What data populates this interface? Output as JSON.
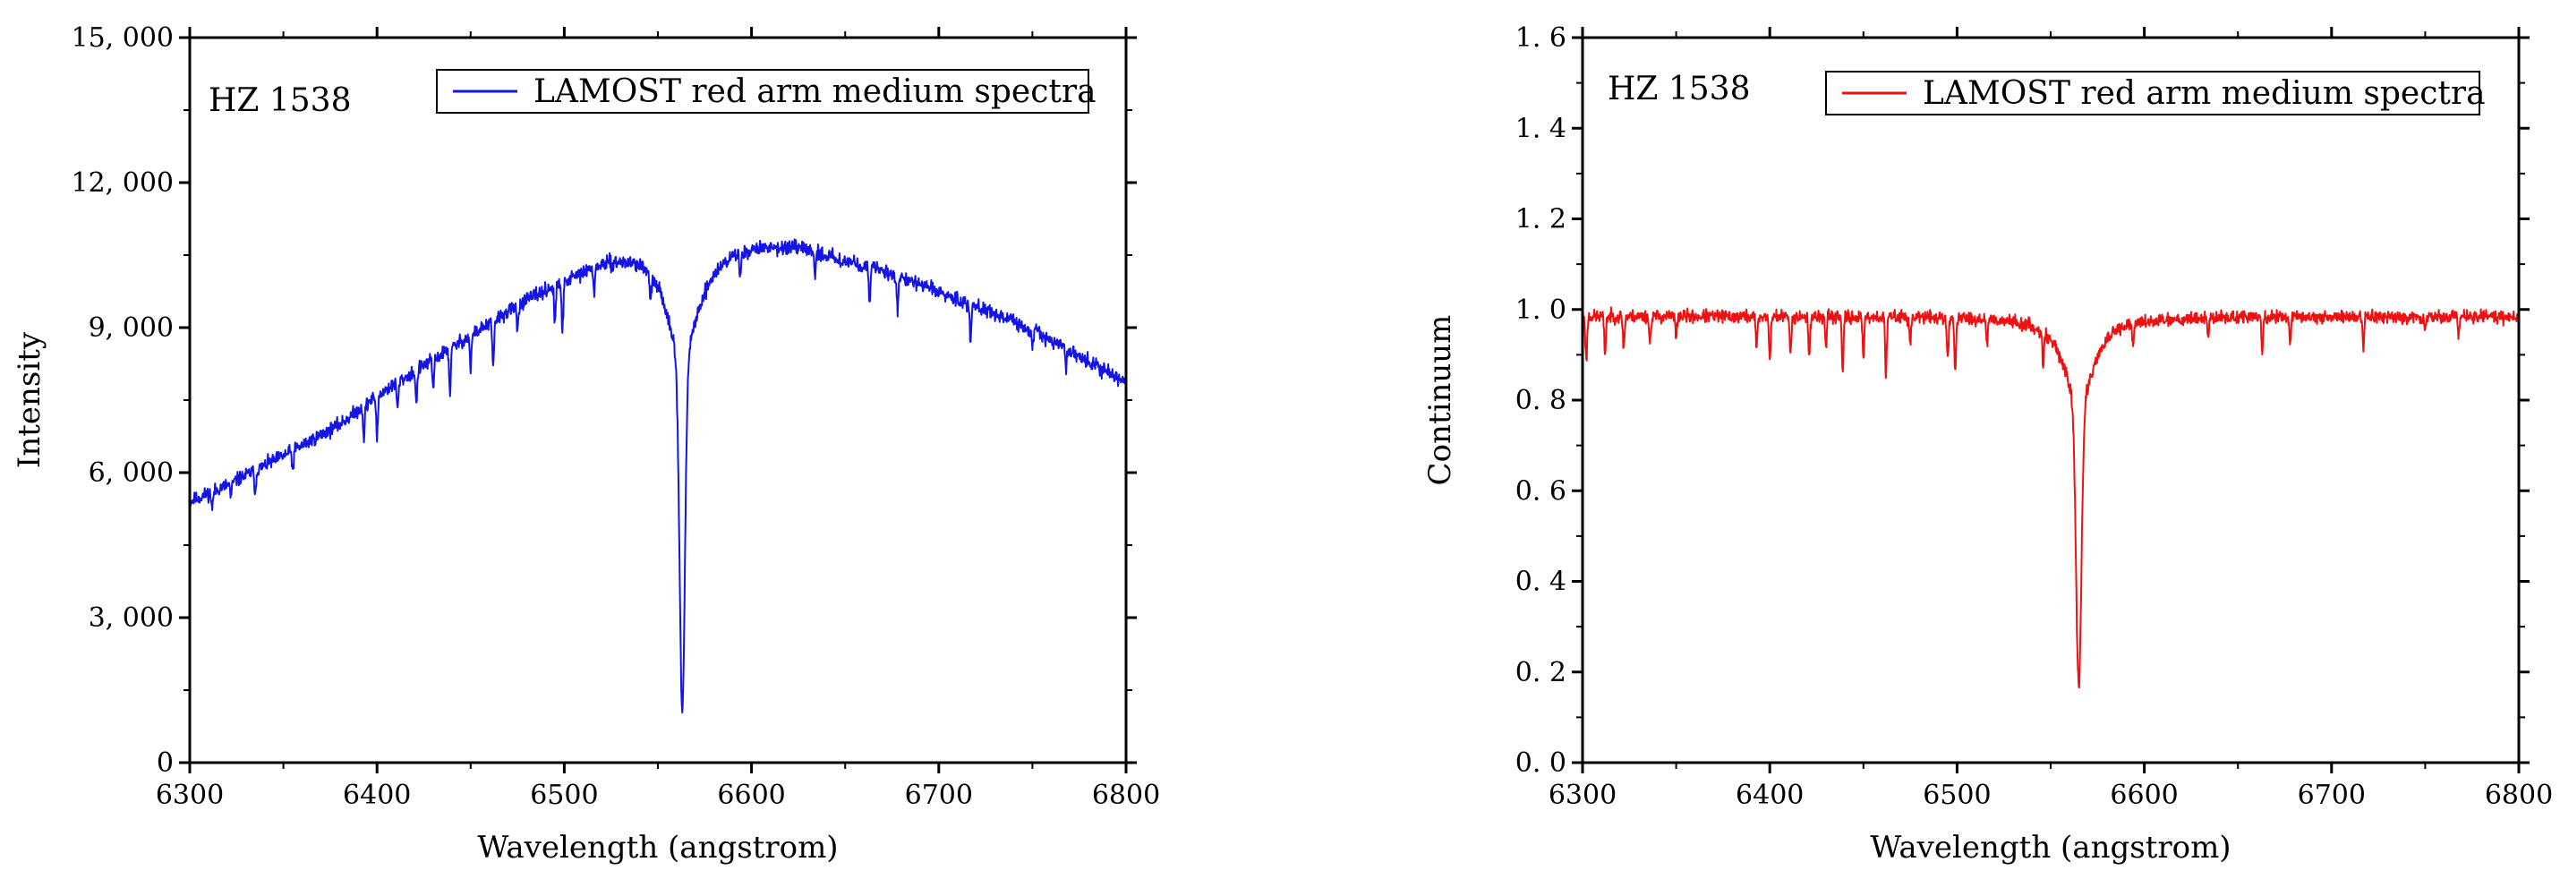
{
  "chart_data": [
    {
      "type": "line",
      "title": "",
      "annotation": "HZ 1538",
      "xlabel": "Wavelength (angstrom)",
      "ylabel": "Intensity",
      "xlim": [
        6300,
        6800
      ],
      "ylim": [
        0,
        15000
      ],
      "x_ticks": [
        6300,
        6400,
        6500,
        6600,
        6700,
        6800
      ],
      "x_tick_labels": [
        "6300",
        "6400",
        "6500",
        "6600",
        "6700",
        "6800"
      ],
      "y_ticks": [
        0,
        3000,
        6000,
        9000,
        12000,
        15000
      ],
      "y_tick_labels": [
        "0",
        "3, 000",
        "6, 000",
        "9, 000",
        "12, 000",
        "15, 000"
      ],
      "legend": {
        "position": "top-right",
        "entries": [
          "LAMOST red arm medium spectra"
        ]
      },
      "series": [
        {
          "name": "LAMOST red arm medium spectra",
          "color": "#1414e6",
          "continuum": {
            "x": [
              6300,
              6320,
              6350,
              6380,
              6400,
              6430,
              6460,
              6480,
              6500,
              6520,
              6540,
              6555,
              6575,
              6590,
              6610,
              6630,
              6650,
              6670,
              6700,
              6730,
              6760,
              6780,
              6800
            ],
            "y": [
              5400,
              5750,
              6350,
              7000,
              7600,
              8350,
              9100,
              9600,
              10000,
              10400,
              10600,
              10500,
              10500,
              10700,
              10750,
              10650,
              10400,
              10200,
              9750,
              9300,
              8750,
              8300,
              7850
            ]
          },
          "halpha": {
            "center": 6563,
            "depth": 7200,
            "core_width": 1.4,
            "wing_depth": 2200,
            "wing_width": 9
          },
          "absorption_lines": [
            {
              "x": 6312,
              "depth": 350
            },
            {
              "x": 6322,
              "depth": 300
            },
            {
              "x": 6335,
              "depth": 450
            },
            {
              "x": 6355,
              "depth": 400
            },
            {
              "x": 6393,
              "depth": 650
            },
            {
              "x": 6400,
              "depth": 900
            },
            {
              "x": 6411,
              "depth": 550
            },
            {
              "x": 6421,
              "depth": 700
            },
            {
              "x": 6430,
              "depth": 600
            },
            {
              "x": 6439,
              "depth": 900
            },
            {
              "x": 6450,
              "depth": 700
            },
            {
              "x": 6462,
              "depth": 1000
            },
            {
              "x": 6475,
              "depth": 500
            },
            {
              "x": 6495,
              "depth": 800
            },
            {
              "x": 6499,
              "depth": 1100
            },
            {
              "x": 6516,
              "depth": 500
            },
            {
              "x": 6546,
              "depth": 600
            },
            {
              "x": 6594,
              "depth": 500
            },
            {
              "x": 6634,
              "depth": 450
            },
            {
              "x": 6663,
              "depth": 800
            },
            {
              "x": 6678,
              "depth": 700
            },
            {
              "x": 6717,
              "depth": 750
            },
            {
              "x": 6750,
              "depth": 350
            },
            {
              "x": 6768,
              "depth": 400
            }
          ],
          "noise": 120,
          "seed": 11
        }
      ]
    },
    {
      "type": "line",
      "title": "",
      "annotation": "HZ 1538",
      "xlabel": "Wavelength (angstrom)",
      "ylabel": "Continuum",
      "xlim": [
        6300,
        6800
      ],
      "ylim": [
        0.0,
        1.6
      ],
      "x_ticks": [
        6300,
        6400,
        6500,
        6600,
        6700,
        6800
      ],
      "x_tick_labels": [
        "6300",
        "6400",
        "6500",
        "6600",
        "6700",
        "6800"
      ],
      "y_ticks": [
        0.0,
        0.2,
        0.4,
        0.6,
        0.8,
        1.0,
        1.2,
        1.4,
        1.6
      ],
      "y_tick_labels": [
        "0. 0",
        "0. 2",
        "0. 4",
        "0. 6",
        "0. 8",
        "1. 0",
        "1. 2",
        "1. 4",
        "1. 6"
      ],
      "legend": {
        "position": "top-right",
        "entries": [
          "LAMOST red arm medium spectra"
        ]
      },
      "series": [
        {
          "name": "LAMOST red arm medium spectra",
          "color": "#ee1111",
          "continuum": {
            "x": [
              6300,
              6800
            ],
            "y": [
              0.985,
              0.985
            ]
          },
          "halpha": {
            "center": 6565,
            "depth": 0.62,
            "core_width": 1.4,
            "wing_depth": 0.2,
            "wing_width": 9
          },
          "absorption_lines": [
            {
              "x": 6302,
              "depth": 0.1
            },
            {
              "x": 6312,
              "depth": 0.08
            },
            {
              "x": 6322,
              "depth": 0.07
            },
            {
              "x": 6336,
              "depth": 0.06
            },
            {
              "x": 6350,
              "depth": 0.05
            },
            {
              "x": 6393,
              "depth": 0.07
            },
            {
              "x": 6400,
              "depth": 0.1
            },
            {
              "x": 6411,
              "depth": 0.08
            },
            {
              "x": 6421,
              "depth": 0.09
            },
            {
              "x": 6430,
              "depth": 0.07
            },
            {
              "x": 6439,
              "depth": 0.12
            },
            {
              "x": 6450,
              "depth": 0.1
            },
            {
              "x": 6462,
              "depth": 0.13
            },
            {
              "x": 6475,
              "depth": 0.06
            },
            {
              "x": 6495,
              "depth": 0.1
            },
            {
              "x": 6499,
              "depth": 0.12
            },
            {
              "x": 6516,
              "depth": 0.05
            },
            {
              "x": 6546,
              "depth": 0.07
            },
            {
              "x": 6594,
              "depth": 0.05
            },
            {
              "x": 6634,
              "depth": 0.04
            },
            {
              "x": 6663,
              "depth": 0.08
            },
            {
              "x": 6678,
              "depth": 0.06
            },
            {
              "x": 6717,
              "depth": 0.07
            },
            {
              "x": 6750,
              "depth": 0.04
            },
            {
              "x": 6768,
              "depth": 0.04
            }
          ],
          "noise": 0.012,
          "seed": 23
        }
      ]
    }
  ]
}
